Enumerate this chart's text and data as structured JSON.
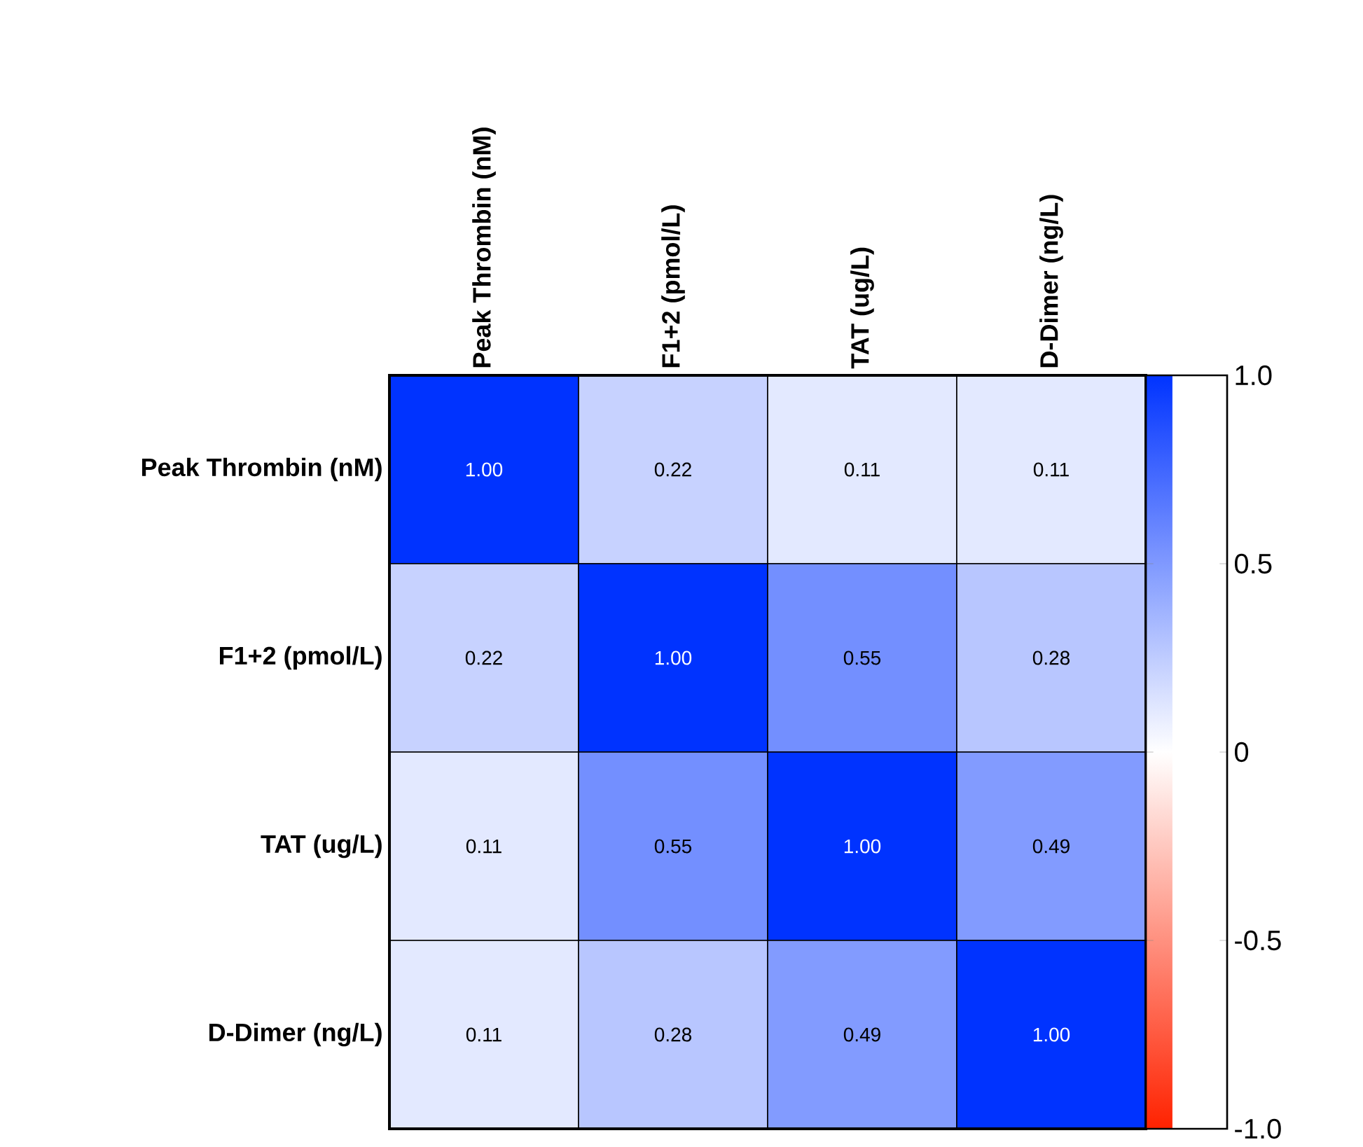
{
  "chart_data": {
    "type": "heatmap",
    "categories": [
      "Peak Thrombin (nM)",
      "F1+2 (pmol/L)",
      "TAT (ug/L)",
      "D-Dimer (ng/L)"
    ],
    "y_categories": [
      "Peak Thrombin (nM)",
      "F1+2 (pmol/L)",
      "TAT (ug/L)",
      "D-Dimer (ng/L)"
    ],
    "cells": [
      [
        1.0,
        0.22,
        0.11,
        0.11
      ],
      [
        0.22,
        1.0,
        0.55,
        0.28
      ],
      [
        0.11,
        0.55,
        1.0,
        0.49
      ],
      [
        0.11,
        0.28,
        0.49,
        1.0
      ]
    ],
    "cell_labels": [
      [
        "1.00",
        "0.22",
        "0.11",
        "0.11"
      ],
      [
        "0.22",
        "1.00",
        "0.55",
        "0.28"
      ],
      [
        "0.11",
        "0.55",
        "1.00",
        "0.49"
      ],
      [
        "0.11",
        "0.28",
        "0.49",
        "1.00"
      ]
    ],
    "clim": [
      -1,
      1
    ],
    "cticks": [
      {
        "value": -1,
        "label": "-1.0"
      },
      {
        "value": -0.5,
        "label": "-0.5"
      },
      {
        "value": 0,
        "label": "0"
      },
      {
        "value": 0.5,
        "label": "0.5"
      },
      {
        "value": 1,
        "label": "1.0"
      }
    ]
  }
}
